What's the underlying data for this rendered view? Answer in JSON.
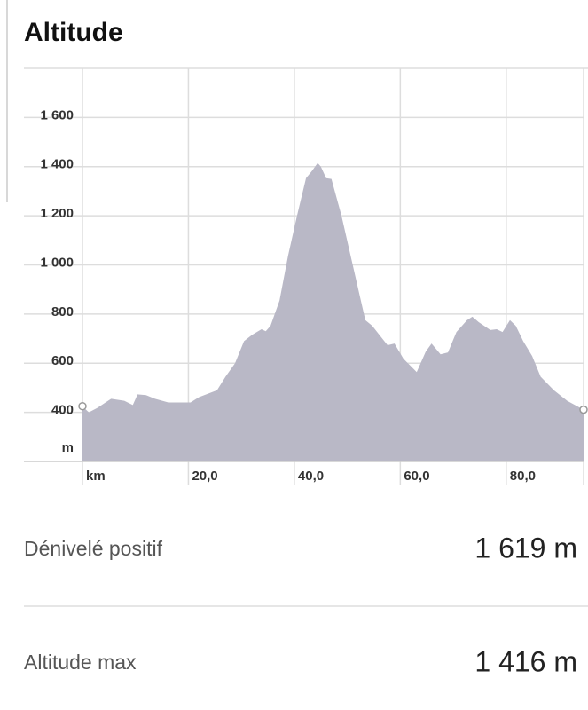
{
  "header": {
    "title": "Altitude"
  },
  "chart_data": {
    "type": "area",
    "color": "#b9b8c6",
    "grid": true,
    "y_label": "m",
    "x": [
      0,
      1.2,
      2.8,
      5.4,
      7.9,
      9.5,
      10.4,
      12,
      13.7,
      16.2,
      20.4,
      22,
      25.4,
      27,
      28.8,
      30.5,
      32,
      33.8,
      34.6,
      35.5,
      37.2,
      38.8,
      40.5,
      42.2,
      43.3,
      44.4,
      45,
      46,
      47,
      48.9,
      51.4,
      53.4,
      54.7,
      57.6,
      58.9,
      60.6,
      63.1,
      64.8,
      65.9,
      67.6,
      69,
      70.6,
      72.6,
      73.6,
      74.8,
      77,
      78.2,
      79.3,
      80.7,
      81.8,
      83.2,
      84.9,
      86.5,
      89,
      91.5,
      94.6
    ],
    "values": [
      425,
      400,
      418,
      455,
      447,
      430,
      473,
      470,
      455,
      440,
      440,
      462,
      490,
      545,
      600,
      690,
      715,
      738,
      730,
      752,
      855,
      1036,
      1200,
      1353,
      1382,
      1415,
      1400,
      1353,
      1350,
      1200,
      964,
      775,
      752,
      673,
      680,
      618,
      564,
      647,
      680,
      636,
      644,
      727,
      775,
      789,
      767,
      735,
      738,
      727,
      775,
      752,
      690,
      629,
      545,
      490,
      447,
      411
    ],
    "xlim": [
      0,
      94.6
    ],
    "ylim": [
      200,
      1800
    ],
    "xticks": [
      {
        "value": 0,
        "label": "km"
      },
      {
        "value": 20,
        "label": "20,0"
      },
      {
        "value": 40,
        "label": "40,0"
      },
      {
        "value": 60,
        "label": "60,0"
      },
      {
        "value": 80,
        "label": "80,0"
      }
    ],
    "yticks": [
      {
        "value": 400,
        "label": "400"
      },
      {
        "value": 600,
        "label": "600"
      },
      {
        "value": 800,
        "label": "800"
      },
      {
        "value": 1000,
        "label": "1 000"
      },
      {
        "value": 1200,
        "label": "1 200"
      },
      {
        "value": 1400,
        "label": "1 400"
      },
      {
        "value": 1600,
        "label": "1 600"
      }
    ]
  },
  "stats": [
    {
      "label": "Dénivelé positif",
      "value": "1 619 m"
    },
    {
      "label": "Altitude max",
      "value": "1 416 m"
    }
  ]
}
